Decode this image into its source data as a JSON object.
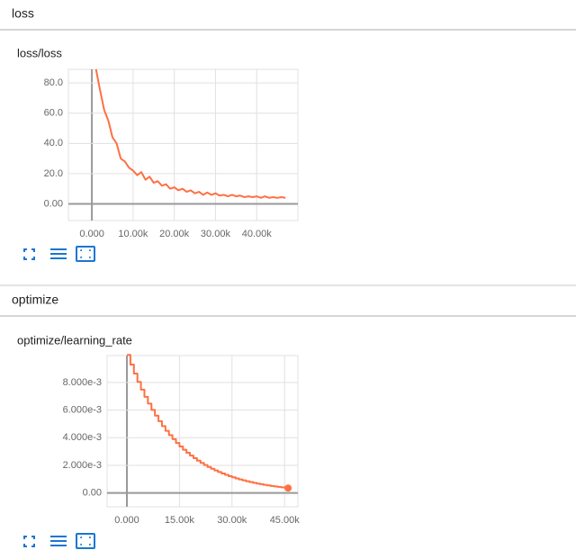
{
  "sections": [
    {
      "title": "loss"
    },
    {
      "title": "optimize"
    }
  ],
  "chart_data": [
    {
      "type": "line",
      "title": "loss/loss",
      "color": "#ff7043",
      "grid": true,
      "x": [
        1000,
        2000,
        3000,
        4000,
        5000,
        6000,
        7000,
        8000,
        9000,
        10000,
        11000,
        12000,
        13000,
        14000,
        15000,
        16000,
        17000,
        18000,
        19000,
        20000,
        21000,
        22000,
        23000,
        24000,
        25000,
        26000,
        27000,
        28000,
        29000,
        30000,
        31000,
        32000,
        33000,
        34000,
        35000,
        36000,
        37000,
        38000,
        39000,
        40000,
        41000,
        42000,
        43000,
        44000,
        45000,
        46000,
        47000
      ],
      "values": [
        89,
        75,
        62,
        55,
        44,
        40,
        30,
        28,
        24,
        22,
        19,
        21,
        16,
        18,
        14,
        15,
        12,
        13,
        10,
        11,
        9,
        10,
        8,
        9,
        7,
        8,
        6,
        7.5,
        6,
        7,
        5.5,
        6,
        5,
        6,
        5,
        5.5,
        4.5,
        5,
        4.5,
        5,
        4,
        5,
        4,
        4.5,
        4,
        4.5,
        4
      ],
      "xlim": [
        -5700,
        50000
      ],
      "ylim": [
        -11,
        89
      ],
      "xticks": [
        {
          "value": 0,
          "label": "0.000"
        },
        {
          "value": 10000,
          "label": "10.00k"
        },
        {
          "value": 20000,
          "label": "20.00k"
        },
        {
          "value": 30000,
          "label": "30.00k"
        },
        {
          "value": 40000,
          "label": "40.00k"
        }
      ],
      "yticks": [
        {
          "value": 0,
          "label": "0.00"
        },
        {
          "value": 20,
          "label": "20.0"
        },
        {
          "value": 40,
          "label": "40.0"
        },
        {
          "value": 60,
          "label": "60.0"
        },
        {
          "value": 80,
          "label": "80.0"
        }
      ]
    },
    {
      "type": "line",
      "title": "optimize/learning_rate",
      "color": "#ff7043",
      "grid": true,
      "step": true,
      "end_marker": true,
      "x": [
        0,
        1000,
        2000,
        3000,
        4000,
        5000,
        6000,
        7000,
        8000,
        9000,
        10000,
        11000,
        12000,
        13000,
        14000,
        15000,
        16000,
        17000,
        18000,
        19000,
        20000,
        21000,
        22000,
        23000,
        24000,
        25000,
        26000,
        27000,
        28000,
        29000,
        30000,
        31000,
        32000,
        33000,
        34000,
        35000,
        36000,
        37000,
        38000,
        39000,
        40000,
        41000,
        42000,
        43000,
        44000,
        45000,
        46000
      ],
      "values": [
        0.01,
        0.0093,
        0.008649,
        0.008044,
        0.007481,
        0.006957,
        0.00647,
        0.006017,
        0.005596,
        0.005204,
        0.00484,
        0.004501,
        0.004186,
        0.003893,
        0.00362,
        0.003367,
        0.003131,
        0.002912,
        0.002708,
        0.002519,
        0.002342,
        0.002178,
        0.002026,
        0.001884,
        0.001752,
        0.00163,
        0.001515,
        0.001409,
        0.001311,
        0.001219,
        0.001134,
        0.001054,
        0.0009805,
        0.0009119,
        0.000848,
        0.0007887,
        0.0007335,
        0.0006821,
        0.0006344,
        0.00059,
        0.0005487,
        0.0005103,
        0.0004746,
        0.0004413,
        0.0004104,
        0.0003817,
        0.000355
      ],
      "xlim": [
        -5650,
        48800
      ],
      "ylim": [
        -0.001,
        0.00995
      ],
      "xticks": [
        {
          "value": 0,
          "label": "0.000"
        },
        {
          "value": 15000,
          "label": "15.00k"
        },
        {
          "value": 30000,
          "label": "30.00k"
        },
        {
          "value": 45000,
          "label": "45.00k"
        }
      ],
      "yticks": [
        {
          "value": 0,
          "label": "0.00"
        },
        {
          "value": 0.002,
          "label": "2.000e-3"
        },
        {
          "value": 0.004,
          "label": "4.000e-3"
        },
        {
          "value": 0.006,
          "label": "6.000e-3"
        },
        {
          "value": 0.008,
          "label": "8.000e-3"
        }
      ]
    }
  ]
}
